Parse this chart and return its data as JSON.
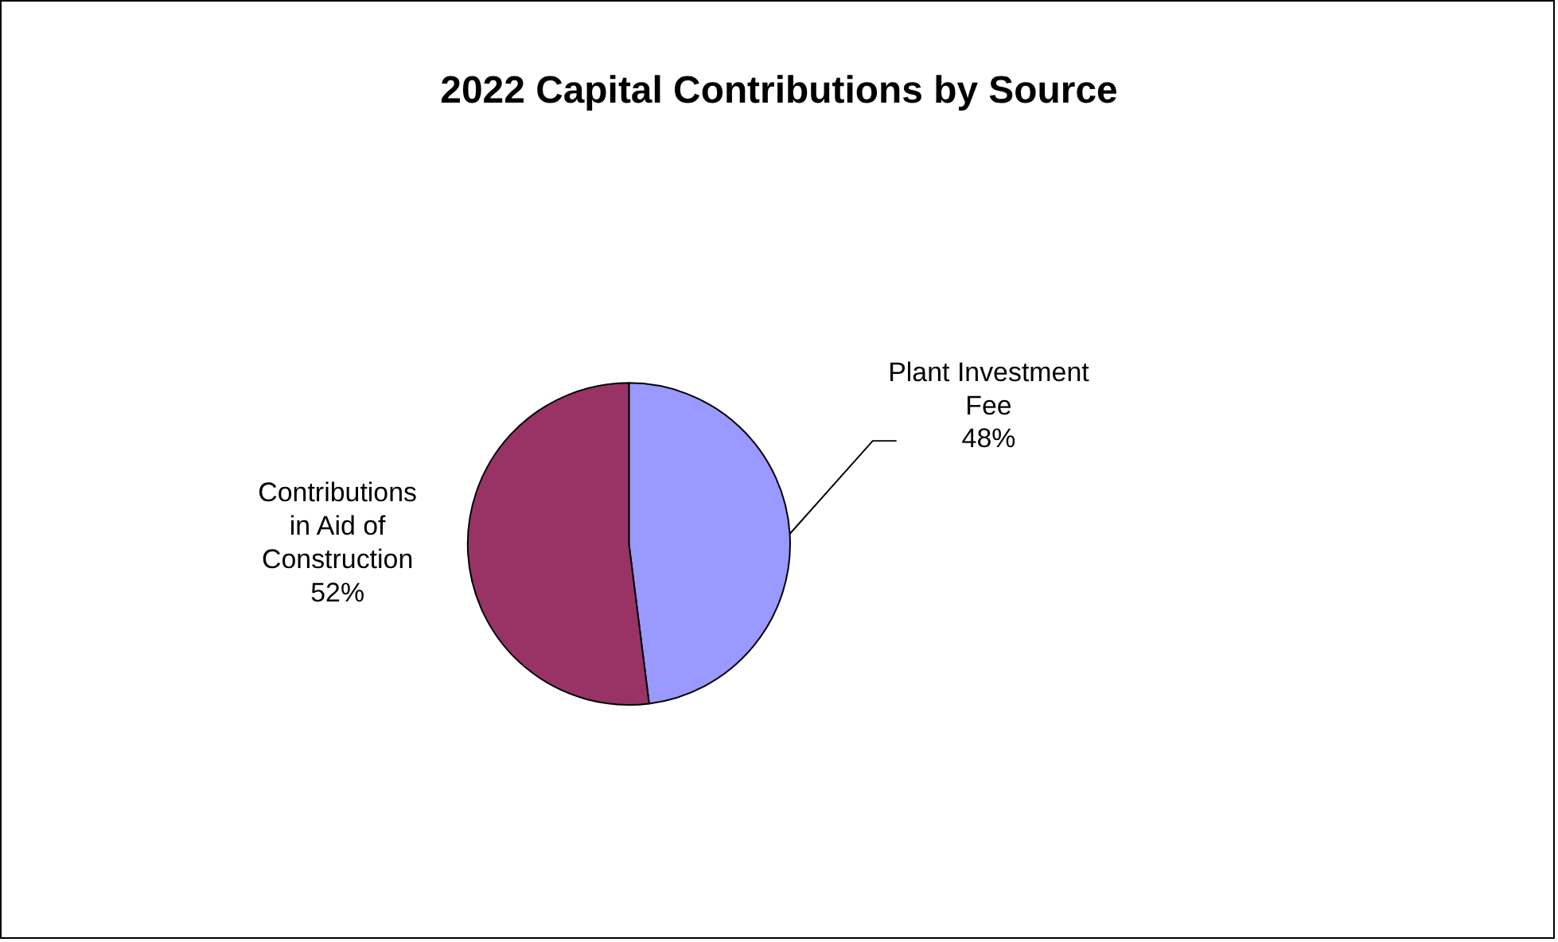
{
  "chart_data": {
    "type": "pie",
    "title": "2022 Capital Contributions by Source",
    "categories": [
      "Plant Investment Fee",
      "Contributions in Aid of Construction"
    ],
    "values": [
      48,
      52
    ],
    "colors": [
      "#9999ff",
      "#993366"
    ],
    "value_labels": [
      "48%",
      "52%"
    ],
    "legend": false
  }
}
